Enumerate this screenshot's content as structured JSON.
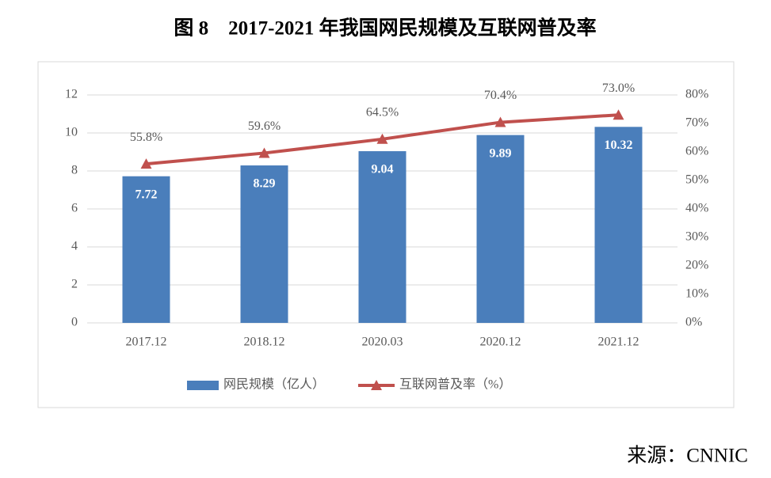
{
  "title": "图 8　2017-2021 年我国网民规模及互联网普及率",
  "source": "来源：CNNIC",
  "chart_data": {
    "type": "bar",
    "categories": [
      "2017.12",
      "2018.12",
      "2020.03",
      "2020.12",
      "2021.12"
    ],
    "series": [
      {
        "name": "网民规模（亿人）",
        "type": "bar",
        "color": "#4a7ebb",
        "values": [
          7.72,
          8.29,
          9.04,
          9.89,
          10.32
        ]
      },
      {
        "name": "互联网普及率（%）",
        "type": "line",
        "axis": "y2",
        "color": "#c0504d",
        "values": [
          55.8,
          59.6,
          64.5,
          70.4,
          73.0
        ],
        "value_labels": [
          "55.8%",
          "59.6%",
          "64.5%",
          "70.4%",
          "73.0%"
        ]
      }
    ],
    "ylim": [
      0,
      12
    ],
    "yticks": [
      0,
      2,
      4,
      6,
      8,
      10,
      12
    ],
    "y2lim": [
      0,
      80
    ],
    "y2ticks": [
      {
        "value": 0,
        "label": "0%"
      },
      {
        "value": 10,
        "label": "10%"
      },
      {
        "value": 20,
        "label": "20%"
      },
      {
        "value": 30,
        "label": "30%"
      },
      {
        "value": 40,
        "label": "40%"
      },
      {
        "value": 50,
        "label": "50%"
      },
      {
        "value": 60,
        "label": "60%"
      },
      {
        "value": 70,
        "label": "70%"
      },
      {
        "value": 80,
        "label": "80%"
      }
    ],
    "grid": true,
    "legend": "bottom"
  }
}
